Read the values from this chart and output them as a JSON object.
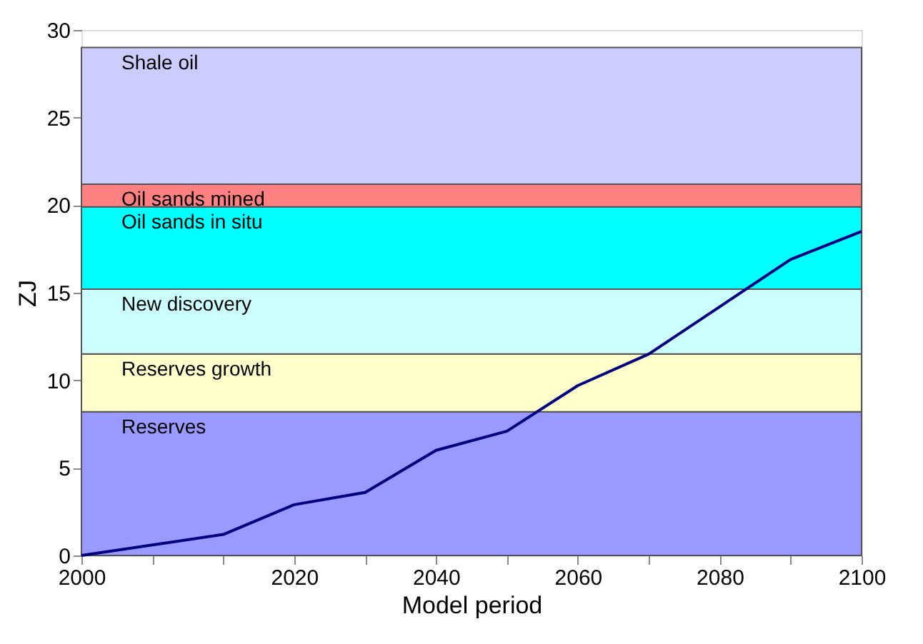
{
  "chart_data": {
    "type": "line",
    "xlabel": "Model period",
    "ylabel": "ZJ",
    "categories": [
      "2000",
      null,
      null,
      "2020",
      null,
      "2040",
      null,
      "2060",
      null,
      "2080",
      null,
      "2100"
    ],
    "series": [
      {
        "color": "#000080",
        "values": [
          0.0,
          0.6,
          1.2,
          2.9,
          3.6,
          6.0,
          7.1,
          9.7,
          11.5,
          14.2,
          16.9,
          18.5
        ]
      }
    ],
    "ylim": [
      0,
      30
    ],
    "yticks": [
      0,
      5,
      10,
      15,
      20,
      25,
      30
    ],
    "bands": [
      {
        "axis": "y",
        "from": 0,
        "to": 8.2,
        "label": "Reserves",
        "color": "#9999ff"
      },
      {
        "axis": "y",
        "from": 8.2,
        "to": 11.5,
        "label": "Reserves growth",
        "color": "#ffffcc"
      },
      {
        "axis": "y",
        "from": 11.5,
        "to": 15.2,
        "label": "New discovery",
        "color": "#ccffff"
      },
      {
        "axis": "y",
        "from": 15.2,
        "to": 19.9,
        "label": "Oil sands in situ",
        "color": "#00ffff"
      },
      {
        "axis": "y",
        "from": 19.9,
        "to": 21.2,
        "label": "Oil sands mined",
        "color": "#ff8080"
      },
      {
        "axis": "y",
        "from": 21.2,
        "to": 29,
        "label": "Shale oil",
        "color": "#ccccff"
      }
    ],
    "grid": false,
    "marker": "none",
    "line_style": "solid"
  }
}
